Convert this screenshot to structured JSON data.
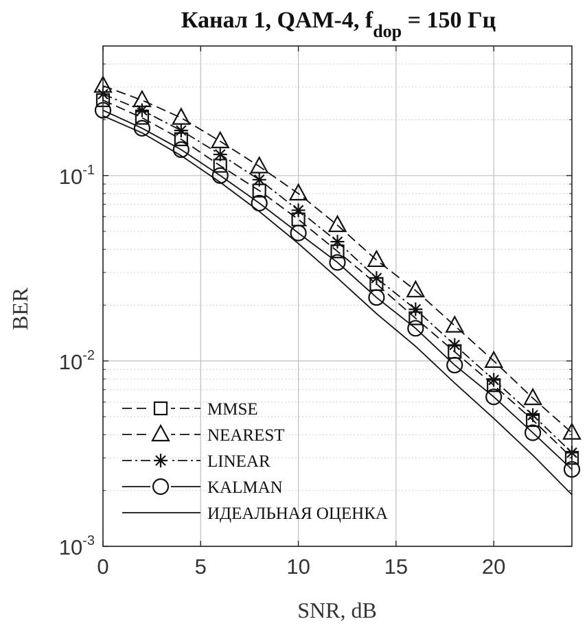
{
  "chart_data": {
    "type": "line",
    "title": {
      "prefix": "Канал 1, QAM-4, f",
      "subscript": "dop",
      "suffix": " = 150 Гц"
    },
    "xlabel": "SNR, dB",
    "ylabel": "BER",
    "x_scale": "linear",
    "y_scale": "log",
    "xlim": [
      0,
      24
    ],
    "ylim": [
      0.001,
      0.5
    ],
    "x_ticks": [
      "0",
      "5",
      "10",
      "15",
      "20"
    ],
    "y_ticks": [
      {
        "base": "10",
        "exp": "-1",
        "value": 0.1
      },
      {
        "base": "10",
        "exp": "-2",
        "value": 0.01
      },
      {
        "base": "10",
        "exp": "-3",
        "value": 0.001
      }
    ],
    "grid": true,
    "legend_position": "bottom-left",
    "x": [
      0,
      2,
      4,
      6,
      8,
      10,
      12,
      14,
      16,
      18,
      20,
      22,
      24
    ],
    "series": [
      {
        "name": "MMSE",
        "marker": "square",
        "line_style": "dashed",
        "values": [
          0.255,
          0.205,
          0.157,
          0.113,
          0.083,
          0.058,
          0.039,
          0.026,
          0.017,
          0.0112,
          0.0074,
          0.0048,
          0.003
        ]
      },
      {
        "name": "NEAREST",
        "marker": "triangle",
        "line_style": "dashed",
        "values": [
          0.305,
          0.255,
          0.205,
          0.153,
          0.112,
          0.08,
          0.054,
          0.035,
          0.024,
          0.0155,
          0.01,
          0.0063,
          0.0041
        ]
      },
      {
        "name": "LINEAR",
        "marker": "star",
        "line_style": "dashdot",
        "values": [
          0.275,
          0.225,
          0.175,
          0.13,
          0.095,
          0.065,
          0.044,
          0.028,
          0.019,
          0.0122,
          0.0079,
          0.0051,
          0.0032
        ]
      },
      {
        "name": "KALMAN",
        "marker": "circle",
        "line_style": "solid",
        "values": [
          0.225,
          0.18,
          0.138,
          0.1,
          0.071,
          0.049,
          0.034,
          0.022,
          0.015,
          0.0095,
          0.0064,
          0.0041,
          0.0026
        ]
      },
      {
        "name": "ИДЕАЛЬНАЯ ОЦЕНКА",
        "marker": "none",
        "line_style": "solid",
        "values": [
          0.21,
          0.17,
          0.128,
          0.092,
          0.064,
          0.043,
          0.028,
          0.018,
          0.012,
          0.0076,
          0.0049,
          0.0031,
          0.0019
        ]
      }
    ]
  }
}
